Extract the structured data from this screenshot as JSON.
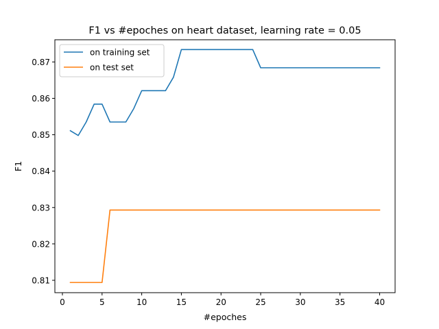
{
  "chart_data": {
    "type": "line",
    "title": "F1 vs #epoches on heart dataset, learning rate = 0.05",
    "xlabel": "#epoches",
    "ylabel": "F1",
    "xlim": [
      -0.95,
      41.95
    ],
    "ylim": [
      0.8066,
      0.8761
    ],
    "xticks": [
      0,
      5,
      10,
      15,
      20,
      25,
      30,
      35,
      40
    ],
    "xtick_labels": [
      "0",
      "5",
      "10",
      "15",
      "20",
      "25",
      "30",
      "35",
      "40"
    ],
    "yticks": [
      0.81,
      0.82,
      0.83,
      0.84,
      0.85,
      0.86,
      0.87
    ],
    "ytick_labels": [
      "0.81",
      "0.82",
      "0.83",
      "0.84",
      "0.85",
      "0.86",
      "0.87"
    ],
    "grid": false,
    "legend_position": "top-left",
    "series": [
      {
        "name": "on training set",
        "color": "#1f77b4",
        "x": [
          1,
          2,
          3,
          4,
          5,
          6,
          7,
          8,
          9,
          10,
          11,
          12,
          13,
          14,
          15,
          16,
          17,
          18,
          19,
          20,
          21,
          22,
          23,
          24,
          25,
          26,
          27,
          28,
          29,
          30,
          31,
          32,
          33,
          34,
          35,
          36,
          37,
          38,
          39,
          40
        ],
        "values": [
          0.8511,
          0.8498,
          0.8535,
          0.8584,
          0.8584,
          0.8535,
          0.8535,
          0.8535,
          0.8572,
          0.8621,
          0.8621,
          0.8621,
          0.8621,
          0.8658,
          0.8734,
          0.8734,
          0.8734,
          0.8734,
          0.8734,
          0.8734,
          0.8734,
          0.8734,
          0.8734,
          0.8734,
          0.8684,
          0.8684,
          0.8684,
          0.8684,
          0.8684,
          0.8684,
          0.8684,
          0.8684,
          0.8684,
          0.8684,
          0.8684,
          0.8684,
          0.8684,
          0.8684,
          0.8684,
          0.8684
        ]
      },
      {
        "name": "on test set",
        "color": "#ff7f0e",
        "x": [
          1,
          2,
          3,
          4,
          5,
          6,
          7,
          8,
          9,
          10,
          11,
          12,
          13,
          14,
          15,
          16,
          17,
          18,
          19,
          20,
          21,
          22,
          23,
          24,
          25,
          26,
          27,
          28,
          29,
          30,
          31,
          32,
          33,
          34,
          35,
          36,
          37,
          38,
          39,
          40
        ],
        "values": [
          0.8094,
          0.8094,
          0.8094,
          0.8094,
          0.8094,
          0.8293,
          0.8293,
          0.8293,
          0.8293,
          0.8293,
          0.8293,
          0.8293,
          0.8293,
          0.8293,
          0.8293,
          0.8293,
          0.8293,
          0.8293,
          0.8293,
          0.8293,
          0.8293,
          0.8293,
          0.8293,
          0.8293,
          0.8293,
          0.8293,
          0.8293,
          0.8293,
          0.8293,
          0.8293,
          0.8293,
          0.8293,
          0.8293,
          0.8293,
          0.8293,
          0.8293,
          0.8293,
          0.8293,
          0.8293,
          0.8293
        ]
      }
    ]
  }
}
